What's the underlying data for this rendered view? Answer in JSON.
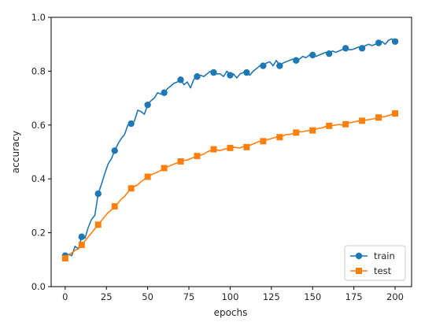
{
  "chart_data": {
    "type": "line",
    "title": "",
    "xlabel": "epochs",
    "ylabel": "accuracy",
    "xlim": [
      -8.5,
      210
    ],
    "ylim": [
      0.0,
      1.0
    ],
    "xticks": [
      0,
      25,
      50,
      75,
      100,
      125,
      150,
      175,
      200
    ],
    "yticks": [
      0.0,
      0.2,
      0.4,
      0.6,
      0.8,
      1.0
    ],
    "grid": false,
    "legend_position": "lower-right",
    "marker_every": 10,
    "series": [
      {
        "name": "train",
        "color": "#1f77b4",
        "marker": "circle",
        "x": [
          0,
          2,
          4,
          6,
          8,
          10,
          12,
          14,
          16,
          18,
          20,
          22,
          24,
          26,
          28,
          30,
          32,
          34,
          36,
          38,
          40,
          42,
          44,
          46,
          48,
          50,
          52,
          54,
          56,
          58,
          60,
          62,
          64,
          66,
          68,
          70,
          72,
          74,
          76,
          78,
          80,
          82,
          84,
          86,
          88,
          90,
          92,
          94,
          96,
          98,
          100,
          102,
          104,
          106,
          108,
          110,
          112,
          114,
          116,
          118,
          120,
          122,
          124,
          126,
          128,
          130,
          132,
          134,
          136,
          138,
          140,
          142,
          144,
          146,
          148,
          150,
          152,
          154,
          156,
          158,
          160,
          162,
          164,
          166,
          168,
          170,
          172,
          174,
          176,
          178,
          180,
          182,
          184,
          186,
          188,
          190,
          192,
          194,
          196,
          198,
          200
        ],
        "values": [
          0.115,
          0.12,
          0.115,
          0.15,
          0.14,
          0.185,
          0.18,
          0.22,
          0.25,
          0.265,
          0.345,
          0.38,
          0.42,
          0.455,
          0.475,
          0.505,
          0.53,
          0.55,
          0.565,
          0.6,
          0.605,
          0.615,
          0.655,
          0.65,
          0.64,
          0.675,
          0.69,
          0.7,
          0.72,
          0.715,
          0.72,
          0.735,
          0.745,
          0.755,
          0.76,
          0.768,
          0.75,
          0.76,
          0.738,
          0.77,
          0.78,
          0.785,
          0.78,
          0.79,
          0.8,
          0.795,
          0.79,
          0.79,
          0.78,
          0.8,
          0.785,
          0.79,
          0.775,
          0.79,
          0.795,
          0.795,
          0.785,
          0.8,
          0.81,
          0.82,
          0.82,
          0.83,
          0.835,
          0.82,
          0.84,
          0.82,
          0.83,
          0.835,
          0.84,
          0.845,
          0.84,
          0.845,
          0.855,
          0.85,
          0.86,
          0.86,
          0.855,
          0.86,
          0.865,
          0.87,
          0.865,
          0.875,
          0.87,
          0.875,
          0.88,
          0.885,
          0.88,
          0.88,
          0.885,
          0.89,
          0.885,
          0.895,
          0.9,
          0.895,
          0.9,
          0.905,
          0.91,
          0.9,
          0.915,
          0.92,
          0.91
        ]
      },
      {
        "name": "test",
        "color": "#ff7f0e",
        "marker": "square",
        "x": [
          0,
          2,
          4,
          6,
          8,
          10,
          12,
          14,
          16,
          18,
          20,
          22,
          24,
          26,
          28,
          30,
          32,
          34,
          36,
          38,
          40,
          42,
          44,
          46,
          48,
          50,
          52,
          54,
          56,
          58,
          60,
          62,
          64,
          66,
          68,
          70,
          72,
          74,
          76,
          78,
          80,
          82,
          84,
          86,
          88,
          90,
          92,
          94,
          96,
          98,
          100,
          102,
          104,
          106,
          108,
          110,
          112,
          114,
          116,
          118,
          120,
          122,
          124,
          126,
          128,
          130,
          132,
          134,
          136,
          138,
          140,
          142,
          144,
          146,
          148,
          150,
          152,
          154,
          156,
          158,
          160,
          162,
          164,
          166,
          168,
          170,
          172,
          174,
          176,
          178,
          180,
          182,
          184,
          186,
          188,
          190,
          192,
          194,
          196,
          198,
          200
        ],
        "values": [
          0.105,
          0.118,
          0.125,
          0.135,
          0.14,
          0.155,
          0.17,
          0.185,
          0.2,
          0.215,
          0.23,
          0.245,
          0.26,
          0.275,
          0.285,
          0.298,
          0.31,
          0.325,
          0.335,
          0.35,
          0.365,
          0.372,
          0.378,
          0.39,
          0.398,
          0.408,
          0.415,
          0.42,
          0.425,
          0.432,
          0.44,
          0.445,
          0.45,
          0.455,
          0.46,
          0.465,
          0.468,
          0.47,
          0.475,
          0.48,
          0.485,
          0.488,
          0.492,
          0.5,
          0.505,
          0.51,
          0.508,
          0.505,
          0.51,
          0.512,
          0.515,
          0.518,
          0.516,
          0.515,
          0.52,
          0.518,
          0.525,
          0.53,
          0.535,
          0.54,
          0.54,
          0.545,
          0.548,
          0.552,
          0.555,
          0.555,
          0.56,
          0.565,
          0.565,
          0.568,
          0.572,
          0.575,
          0.575,
          0.578,
          0.58,
          0.58,
          0.585,
          0.588,
          0.59,
          0.595,
          0.597,
          0.598,
          0.6,
          0.602,
          0.6,
          0.603,
          0.608,
          0.61,
          0.613,
          0.615,
          0.616,
          0.618,
          0.62,
          0.622,
          0.625,
          0.628,
          0.63,
          0.632,
          0.635,
          0.64,
          0.643
        ]
      }
    ]
  }
}
